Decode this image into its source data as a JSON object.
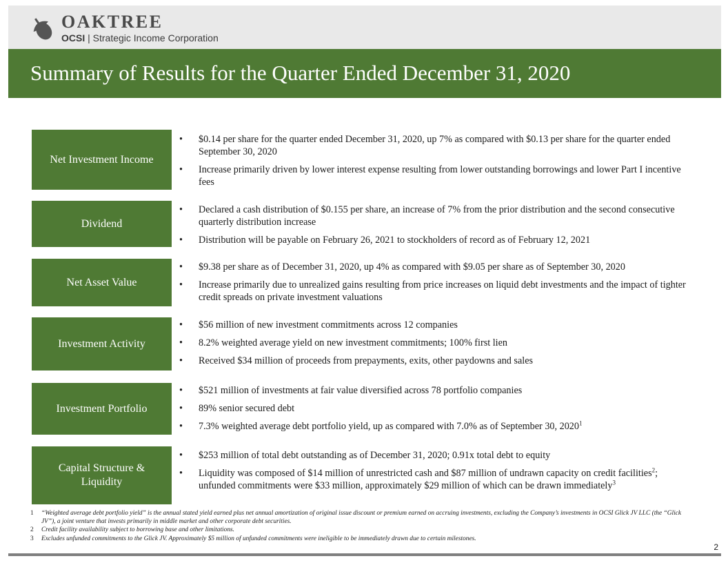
{
  "header": {
    "logo_brand": "OAKTREE",
    "logo_ticker": "OCSI",
    "logo_separator": "|",
    "logo_company": "Strategic Income Corporation",
    "title": "Summary of Results for the Quarter Ended December 31, 2020"
  },
  "colors": {
    "accent_green": "#4f7a34",
    "header_gray": "#e9e9e9",
    "rule_gray": "#7f7f7f"
  },
  "sections": [
    {
      "label": "Net Investment Income",
      "bullets": [
        "$0.14 per share for the quarter ended December 31, 2020, up 7% as compared with $0.13 per share for the quarter ended September 30, 2020",
        "Increase primarily driven by lower interest expense resulting from lower outstanding borrowings and lower Part I incentive fees"
      ]
    },
    {
      "label": "Dividend",
      "bullets": [
        "Declared a cash distribution of $0.155 per share, an increase of 7% from the prior distribution and the second consecutive quarterly distribution increase",
        "Distribution will be payable on February 26, 2021 to stockholders of record as of February 12, 2021"
      ]
    },
    {
      "label": "Net Asset Value",
      "bullets": [
        "$9.38 per share as of December 31, 2020, up 4% as compared with $9.05 per share as of September 30, 2020",
        "Increase primarily due to unrealized gains resulting from price increases on liquid debt investments and the impact of tighter credit spreads on private investment valuations"
      ]
    },
    {
      "label": "Investment Activity",
      "bullets": [
        "$56 million of new investment commitments across 12 companies",
        "8.2% weighted average yield on new investment commitments; 100% first lien",
        "Received $34 million of proceeds from prepayments, exits, other paydowns and sales"
      ]
    },
    {
      "label": "Investment Portfolio",
      "bullets": [
        "$521 million of investments at fair value diversified across 78 portfolio companies",
        "89% senior secured debt",
        "7.3% weighted average debt portfolio yield, up as compared with 7.0% as of September 30, 2020"
      ],
      "bullet3_sup": "1"
    },
    {
      "label_line1": "Capital Structure &",
      "label_line2": "Liquidity",
      "bullet1": "$253 million of total debt outstanding as of December 31, 2020; 0.91x total debt to equity",
      "bullet2_part1": "Liquidity was composed of $14 million of unrestricted cash and $87 million of undrawn capacity on credit facilities",
      "bullet2_sup1": "2",
      "bullet2_part2": "; unfunded commitments were $33 million, approximately $29 million of which can be drawn immediately",
      "bullet2_sup2": "3"
    }
  ],
  "footnotes": [
    {
      "num": "1",
      "text": "“Weighted average debt portfolio yield” is the annual stated yield earned plus net annual amortization of original issue discount or premium earned on accruing investments, excluding the Company’s investments in OCSI Glick JV LLC (the “Glick JV”), a joint venture that invests primarily in middle market and other corporate debt securities."
    },
    {
      "num": "2",
      "text": "Credit facility availability subject to borrowing base and other limitations."
    },
    {
      "num": "3",
      "text": "Excludes unfunded commitments to the Glick JV. Approximately $5 million of unfunded commitments were ineligible to be immediately drawn due to certain milestones."
    }
  ],
  "page_number": "2"
}
